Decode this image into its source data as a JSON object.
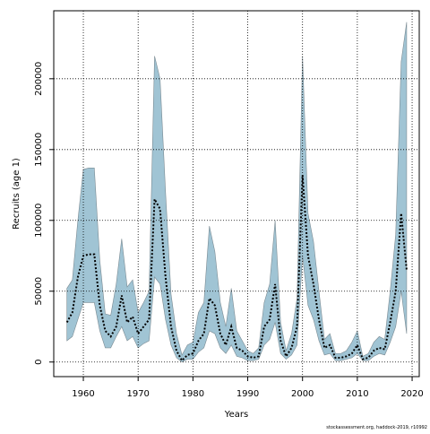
{
  "chart_data": {
    "type": "line",
    "x_label": "Years",
    "y_label": "Recruits (age 1)",
    "caption": "stockassessment.org, haddock-2019, r10992",
    "x": [
      1957,
      1958,
      1959,
      1960,
      1961,
      1962,
      1963,
      1964,
      1965,
      1966,
      1967,
      1968,
      1969,
      1970,
      1971,
      1972,
      1973,
      1974,
      1975,
      1976,
      1977,
      1978,
      1979,
      1980,
      1981,
      1982,
      1983,
      1984,
      1985,
      1986,
      1987,
      1988,
      1989,
      1990,
      1991,
      1992,
      1993,
      1994,
      1995,
      1996,
      1997,
      1998,
      1999,
      2000,
      2001,
      2002,
      2003,
      2004,
      2005,
      2006,
      2007,
      2008,
      2009,
      2010,
      2011,
      2012,
      2013,
      2014,
      2015,
      2016,
      2017,
      2018,
      2019
    ],
    "values": [
      28000,
      35000,
      60000,
      75000,
      76000,
      76000,
      40000,
      22000,
      18000,
      25000,
      47000,
      28000,
      32000,
      20000,
      25000,
      30000,
      115000,
      108000,
      60000,
      25000,
      8000,
      1000,
      5000,
      6000,
      15000,
      20000,
      45000,
      40000,
      20000,
      12000,
      25000,
      10000,
      8000,
      4000,
      3000,
      4000,
      25000,
      30000,
      55000,
      15000,
      4000,
      10000,
      25000,
      132000,
      75000,
      55000,
      30000,
      10000,
      12000,
      3000,
      3000,
      4000,
      6000,
      12000,
      2000,
      3000,
      8000,
      10000,
      9000,
      28000,
      50000,
      105000,
      65000
    ],
    "upper": [
      52000,
      58000,
      100000,
      136000,
      137000,
      137000,
      72000,
      34000,
      33000,
      55000,
      87000,
      53000,
      58000,
      35000,
      42000,
      50000,
      216000,
      200000,
      120000,
      48000,
      20000,
      5000,
      12000,
      14000,
      35000,
      42000,
      96000,
      78000,
      42000,
      25000,
      52000,
      22000,
      15000,
      8000,
      6000,
      10000,
      42000,
      55000,
      100000,
      28000,
      8000,
      20000,
      45000,
      216000,
      105000,
      85000,
      50000,
      16000,
      20000,
      6000,
      6000,
      8000,
      14000,
      22000,
      4000,
      6000,
      14000,
      18000,
      16000,
      50000,
      90000,
      212000,
      240000
    ],
    "lower": [
      15000,
      18000,
      30000,
      42000,
      42000,
      42000,
      22000,
      10000,
      10000,
      18000,
      25000,
      15000,
      18000,
      10000,
      13000,
      15000,
      60000,
      55000,
      30000,
      12000,
      3000,
      0,
      2000,
      2000,
      7000,
      10000,
      22000,
      20000,
      10000,
      6000,
      12000,
      4000,
      3000,
      1000,
      1000,
      2000,
      12000,
      16000,
      28000,
      6000,
      2000,
      5000,
      12000,
      75000,
      40000,
      30000,
      15000,
      5000,
      6000,
      1000,
      1000,
      2000,
      3000,
      6000,
      1000,
      1000,
      4000,
      6000,
      5000,
      14000,
      25000,
      50000,
      20000
    ],
    "color": "#000000",
    "band_color": "#a0c4d4",
    "xlim": [
      1954.6,
      2021.3
    ],
    "ylim": [
      -10300,
      248000
    ],
    "xticks": [
      1960,
      1970,
      1980,
      1990,
      2000,
      2010,
      2020
    ],
    "yticks": [
      0,
      50000,
      100000,
      150000,
      200000
    ],
    "grid": true
  }
}
